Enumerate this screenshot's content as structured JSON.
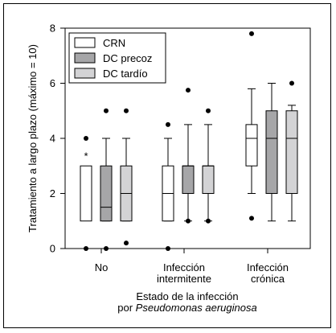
{
  "chart_data": {
    "type": "boxplot",
    "ylabel": "Tratamiento a largo plazo (máximo = 10)",
    "xlabel_line1": "Estado de la infección",
    "xlabel_line2_prefix": "por ",
    "xlabel_line2_italic": "Pseudomonas aeruginosa",
    "ylim": [
      0,
      8
    ],
    "yticks": [
      0,
      2,
      4,
      6,
      8
    ],
    "categories": [
      {
        "id": "no",
        "lines": [
          "No"
        ]
      },
      {
        "id": "intermitente",
        "lines": [
          "Infección",
          "intermitente"
        ]
      },
      {
        "id": "cronica",
        "lines": [
          "Infección",
          "crónica"
        ]
      }
    ],
    "legend": {
      "position": "top-left"
    },
    "series": [
      {
        "name": "CRN",
        "color": "#ffffff",
        "boxes": [
          {
            "whisker_low": null,
            "q1": 1.0,
            "median": null,
            "q3": 3.0,
            "whisker_high": null,
            "outliers": [
              4.0,
              0.0
            ],
            "note": "*"
          },
          {
            "whisker_low": 1.0,
            "q1": 1.0,
            "median": 2.0,
            "q3": 3.0,
            "whisker_high": 4.0,
            "outliers": [
              4.5,
              0.0
            ]
          },
          {
            "whisker_low": 2.0,
            "q1": 3.0,
            "median": 4.0,
            "q3": 4.5,
            "whisker_high": 5.8,
            "outliers": [
              7.8,
              1.1
            ]
          }
        ]
      },
      {
        "name": "DC precoz",
        "color": "#a6a6a8",
        "boxes": [
          {
            "whisker_low": 1.0,
            "q1": 1.0,
            "median": 1.5,
            "q3": 3.0,
            "whisker_high": 4.0,
            "outliers": [
              5.0,
              0.0
            ]
          },
          {
            "whisker_low": 1.0,
            "q1": 2.0,
            "median": 3.0,
            "q3": 3.0,
            "whisker_high": 4.5,
            "outliers": [
              5.75,
              1.0
            ]
          },
          {
            "whisker_low": 1.0,
            "q1": 2.0,
            "median": 4.0,
            "q3": 5.0,
            "whisker_high": 6.0,
            "outliers": []
          }
        ]
      },
      {
        "name": "DC tardío",
        "color": "#d3d3d5",
        "boxes": [
          {
            "whisker_low": 1.0,
            "q1": 1.0,
            "median": 2.0,
            "q3": 3.0,
            "whisker_high": 4.0,
            "outliers": [
              5.0,
              0.2
            ]
          },
          {
            "whisker_low": 1.0,
            "q1": 2.0,
            "median": 3.0,
            "q3": 3.0,
            "whisker_high": 4.5,
            "outliers": [
              5.0,
              1.0
            ]
          },
          {
            "whisker_low": 1.0,
            "q1": 2.0,
            "median": 4.0,
            "q3": 5.0,
            "whisker_high": 5.2,
            "outliers": [
              6.0
            ]
          }
        ]
      }
    ]
  }
}
